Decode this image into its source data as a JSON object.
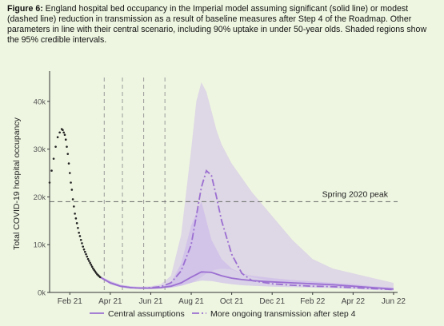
{
  "caption": {
    "label": "Figure 6:",
    "text": " England hospital bed occupancy in the Imperial model assuming significant (solid line) or modest (dashed line) reduction in transmission as a result of baseline measures after Step 4 of the Roadmap. Other parameters in line with their central scenario, including 90% uptake in under 50-year olds. Shaded regions show the 95% credible intervals."
  },
  "colors": {
    "accent": "#9b6fd1",
    "band": "#c9b2ec",
    "points": "#222222",
    "ref": "#777777"
  },
  "chart_data": {
    "type": "line",
    "title": "",
    "xlabel": "",
    "ylabel": "Total COVID-19 hospital occupancy",
    "xlim": [
      0,
      17.2
    ],
    "ylim": [
      0,
      45000
    ],
    "x_ticks": [
      {
        "v": 1,
        "label": "Feb 21"
      },
      {
        "v": 3,
        "label": "Apr 21"
      },
      {
        "v": 5,
        "label": "Jun 21"
      },
      {
        "v": 7,
        "label": "Aug 21"
      },
      {
        "v": 9,
        "label": "Oct 21"
      },
      {
        "v": 11,
        "label": "Dec 21"
      },
      {
        "v": 13,
        "label": "Feb 22"
      },
      {
        "v": 15,
        "label": "Apr 22"
      },
      {
        "v": 17,
        "label": "Jun 22"
      }
    ],
    "y_ticks": [
      {
        "v": 0,
        "label": "0k"
      },
      {
        "v": 10000,
        "label": "10k"
      },
      {
        "v": 20000,
        "label": "20k"
      },
      {
        "v": 30000,
        "label": "30k"
      },
      {
        "v": 40000,
        "label": "40k"
      }
    ],
    "reference_line": {
      "y": 19000,
      "label": "Spring 2020 peak"
    },
    "step_dates": [
      2.7,
      3.6,
      4.65,
      5.7
    ],
    "observed": {
      "x": [
        0.0,
        0.1,
        0.2,
        0.3,
        0.4,
        0.5,
        0.6,
        0.65,
        0.7,
        0.75,
        0.8,
        0.85,
        0.9,
        0.95,
        1.0,
        1.05,
        1.1,
        1.15,
        1.2,
        1.25,
        1.3,
        1.35,
        1.4,
        1.45,
        1.5,
        1.55,
        1.6,
        1.65,
        1.7,
        1.75,
        1.8,
        1.85,
        1.9,
        1.95,
        2.0,
        2.05,
        2.1,
        2.15,
        2.2,
        2.25,
        2.3,
        2.35,
        2.4,
        2.45,
        2.5
      ],
      "y": [
        23000,
        25500,
        28000,
        30500,
        32500,
        33500,
        34200,
        34000,
        33500,
        33000,
        32000,
        30500,
        29000,
        27000,
        25000,
        23000,
        21500,
        19500,
        18000,
        16500,
        15500,
        14500,
        13500,
        12500,
        11800,
        11000,
        10300,
        9600,
        9000,
        8500,
        8000,
        7500,
        7000,
        6600,
        6200,
        5800,
        5400,
        5000,
        4700,
        4400,
        4100,
        3800,
        3600,
        3400,
        3200
      ]
    },
    "series": [
      {
        "name": "Central assumptions",
        "style": "solid",
        "x": [
          2.5,
          3,
          3.5,
          4,
          4.5,
          5,
          5.5,
          6,
          6.5,
          7,
          7.5,
          8,
          8.5,
          9,
          9.5,
          10,
          11,
          12,
          13,
          14,
          15,
          16,
          17
        ],
        "y": [
          3200,
          2000,
          1300,
          1000,
          900,
          900,
          1000,
          1300,
          2000,
          3200,
          4300,
          4200,
          3500,
          3000,
          2700,
          2500,
          2200,
          2000,
          1800,
          1600,
          1300,
          1000,
          700
        ],
        "lower": [
          3000,
          1700,
          1100,
          800,
          700,
          700,
          800,
          1000,
          1400,
          2000,
          2500,
          2400,
          2000,
          1700,
          1500,
          1400,
          1200,
          1100,
          1000,
          900,
          700,
          500,
          400
        ],
        "upper": [
          3400,
          2400,
          1600,
          1300,
          1100,
          1100,
          1300,
          2000,
          6000,
          14000,
          19000,
          11000,
          7000,
          5000,
          4000,
          3500,
          3000,
          2600,
          2300,
          2000,
          1700,
          1300,
          1000
        ]
      },
      {
        "name": "More ongoing transmission after step 4",
        "style": "dashed",
        "x": [
          2.5,
          3,
          3.5,
          4,
          4.5,
          5,
          5.5,
          6,
          6.5,
          7,
          7.25,
          7.5,
          7.75,
          8,
          8.25,
          8.5,
          9,
          9.5,
          10,
          11,
          12,
          13,
          14,
          15,
          16,
          17
        ],
        "y": [
          3200,
          2000,
          1300,
          1000,
          900,
          1000,
          1200,
          2000,
          4500,
          10000,
          16000,
          22000,
          25500,
          24500,
          20000,
          15000,
          8000,
          4000,
          2500,
          1800,
          1500,
          1300,
          1200,
          1000,
          800,
          600
        ],
        "lower": [
          3000,
          1700,
          1100,
          800,
          700,
          700,
          800,
          1000,
          1400,
          2000,
          2600,
          3200,
          4000,
          4500,
          4800,
          5000,
          4800,
          4000,
          3200,
          2400,
          1800,
          1500,
          1300,
          1100,
          900,
          700
        ],
        "upper": [
          3400,
          2400,
          1600,
          1300,
          1200,
          1300,
          1700,
          3500,
          12000,
          30000,
          40000,
          44000,
          42000,
          38000,
          34000,
          31000,
          27000,
          24000,
          21000,
          16000,
          11000,
          7000,
          5000,
          4000,
          3000,
          2000
        ]
      }
    ],
    "legend": {
      "placement": "bottom",
      "entries": [
        "Central assumptions",
        "More ongoing transmission after step 4"
      ]
    }
  }
}
